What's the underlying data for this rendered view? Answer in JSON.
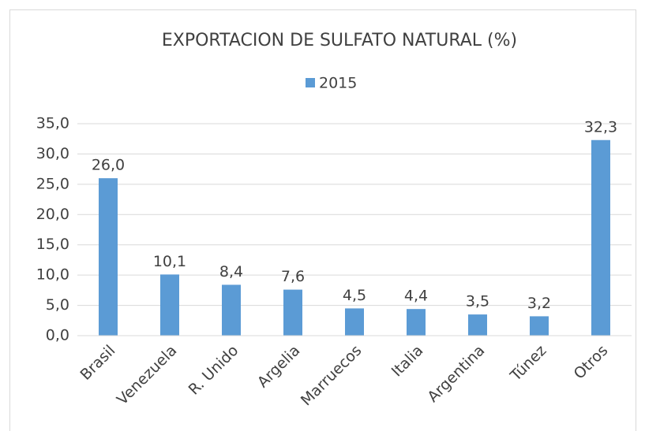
{
  "chart_data": {
    "type": "bar",
    "title": "EXPORTACION DE SULFATO NATURAL (%)",
    "categories": [
      "Brasil",
      "Venezuela",
      "R. Unido",
      "Argelia",
      "Marruecos",
      "Italia",
      "Argentina",
      "Túnez",
      "Otros"
    ],
    "series": [
      {
        "name": "2015",
        "color": "#5b9bd5",
        "values": [
          26.0,
          10.1,
          8.4,
          7.6,
          4.5,
          4.4,
          3.5,
          3.2,
          32.3
        ],
        "value_labels": [
          "26,0",
          "10,1",
          "8,4",
          "7,6",
          "4,5",
          "4,4",
          "3,5",
          "3,2",
          "32,3"
        ]
      }
    ],
    "ylim": [
      0,
      35
    ],
    "yticks": [
      {
        "value": 0,
        "label": "0,0"
      },
      {
        "value": 5,
        "label": "5,0"
      },
      {
        "value": 10,
        "label": "10,0"
      },
      {
        "value": 15,
        "label": "15,0"
      },
      {
        "value": 20,
        "label": "20,0"
      },
      {
        "value": 25,
        "label": "25,0"
      },
      {
        "value": 30,
        "label": "30,0"
      },
      {
        "value": 35,
        "label": "35,0"
      }
    ],
    "grid": true,
    "legend": "top"
  }
}
